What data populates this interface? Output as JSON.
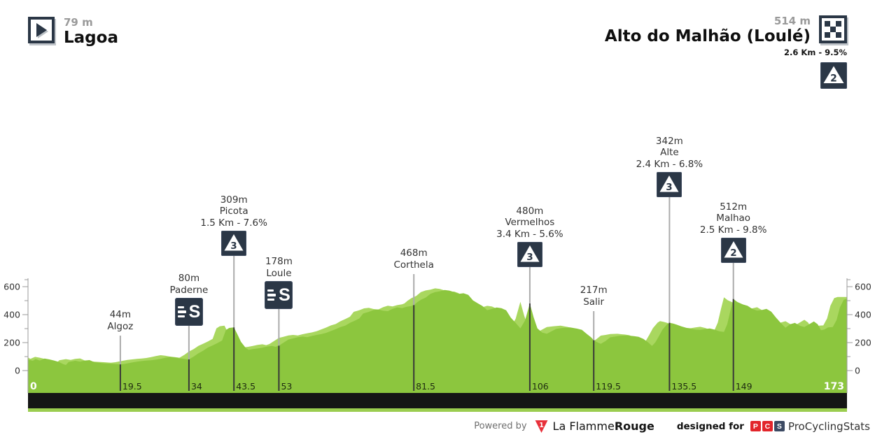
{
  "header": {
    "start": {
      "elevation_label": "79 m",
      "name": "Lagoa"
    },
    "finish": {
      "elevation_label": "514 m",
      "name": "Alto do Malhão (Loulé)",
      "climb_stats": "2.6 Km - 9.5%",
      "category": "2"
    }
  },
  "chart_data": {
    "type": "area",
    "x_unit": "km",
    "y_unit": "m",
    "x_range": [
      0,
      173
    ],
    "y_axis": {
      "major": [
        0,
        200,
        400,
        600
      ],
      "minor": [
        100,
        300,
        500,
        650
      ]
    },
    "x_ticks": [
      0,
      19.5,
      34,
      43.5,
      53,
      81.5,
      106,
      119.5,
      135.5,
      149,
      173
    ],
    "profile": [
      [
        0,
        79
      ],
      [
        1,
        70
      ],
      [
        1.6,
        82
      ],
      [
        2.5,
        72
      ],
      [
        3.5,
        86
      ],
      [
        4.5,
        80
      ],
      [
        5.5,
        72
      ],
      [
        6.5,
        62
      ],
      [
        7.5,
        45
      ],
      [
        8,
        40
      ],
      [
        8.6,
        62
      ],
      [
        10,
        70
      ],
      [
        11,
        64
      ],
      [
        12,
        72
      ],
      [
        13,
        75
      ],
      [
        14,
        60
      ],
      [
        15,
        56
      ],
      [
        16,
        52
      ],
      [
        17,
        50
      ],
      [
        18,
        48
      ],
      [
        19.5,
        44
      ],
      [
        20.5,
        48
      ],
      [
        22,
        58
      ],
      [
        23,
        64
      ],
      [
        24,
        68
      ],
      [
        25,
        72
      ],
      [
        26,
        74
      ],
      [
        27,
        78
      ],
      [
        28,
        84
      ],
      [
        29,
        92
      ],
      [
        30,
        98
      ],
      [
        31,
        94
      ],
      [
        32,
        88
      ],
      [
        33,
        84
      ],
      [
        34,
        80
      ],
      [
        35,
        100
      ],
      [
        36,
        124
      ],
      [
        37,
        142
      ],
      [
        38,
        165
      ],
      [
        39,
        180
      ],
      [
        40,
        196
      ],
      [
        41,
        215
      ],
      [
        41.8,
        290
      ],
      [
        42.5,
        305
      ],
      [
        43.5,
        309
      ],
      [
        44.2,
        262
      ],
      [
        45,
        205
      ],
      [
        46,
        162
      ],
      [
        46.6,
        148
      ],
      [
        47.5,
        154
      ],
      [
        48.5,
        158
      ],
      [
        49.5,
        164
      ],
      [
        50.5,
        172
      ],
      [
        51.5,
        176
      ],
      [
        52.3,
        170
      ],
      [
        53,
        178
      ],
      [
        54,
        200
      ],
      [
        55,
        222
      ],
      [
        56,
        230
      ],
      [
        57,
        239
      ],
      [
        58,
        243
      ],
      [
        59,
        239
      ],
      [
        60,
        248
      ],
      [
        61,
        255
      ],
      [
        62,
        261
      ],
      [
        63,
        270
      ],
      [
        64,
        283
      ],
      [
        65,
        296
      ],
      [
        66,
        311
      ],
      [
        67,
        321
      ],
      [
        68,
        341
      ],
      [
        69,
        356
      ],
      [
        70,
        373
      ],
      [
        70.8,
        408
      ],
      [
        72,
        420
      ],
      [
        73,
        433
      ],
      [
        74,
        437
      ],
      [
        75,
        428
      ],
      [
        76,
        425
      ],
      [
        77,
        441
      ],
      [
        78,
        452
      ],
      [
        79,
        447
      ],
      [
        80,
        456
      ],
      [
        81,
        462
      ],
      [
        81.5,
        468
      ],
      [
        82.2,
        488
      ],
      [
        83,
        506
      ],
      [
        84,
        522
      ],
      [
        85,
        549
      ],
      [
        86,
        561
      ],
      [
        87,
        567
      ],
      [
        88,
        576
      ],
      [
        89,
        572
      ],
      [
        90,
        561
      ],
      [
        91,
        549
      ],
      [
        92,
        553
      ],
      [
        93,
        541
      ],
      [
        94,
        502
      ],
      [
        95,
        481
      ],
      [
        96,
        462
      ],
      [
        97,
        432
      ],
      [
        98,
        441
      ],
      [
        99,
        451
      ],
      [
        100,
        446
      ],
      [
        101,
        431
      ],
      [
        102,
        378
      ],
      [
        103,
        341
      ],
      [
        104,
        302
      ],
      [
        105,
        358
      ],
      [
        106,
        480
      ],
      [
        106.8,
        382
      ],
      [
        107.6,
        302
      ],
      [
        108.6,
        272
      ],
      [
        109.6,
        263
      ],
      [
        110.6,
        281
      ],
      [
        111.6,
        299
      ],
      [
        113,
        305
      ],
      [
        114.5,
        309
      ],
      [
        116,
        300
      ],
      [
        117,
        291
      ],
      [
        118,
        263
      ],
      [
        119,
        236
      ],
      [
        119.5,
        217
      ],
      [
        120.3,
        201
      ],
      [
        121,
        191
      ],
      [
        122,
        211
      ],
      [
        123,
        238
      ],
      [
        124,
        243
      ],
      [
        125,
        249
      ],
      [
        126.5,
        251
      ],
      [
        128,
        246
      ],
      [
        129,
        241
      ],
      [
        130,
        226
      ],
      [
        131,
        201
      ],
      [
        131.8,
        176
      ],
      [
        132.5,
        201
      ],
      [
        133.2,
        241
      ],
      [
        134,
        291
      ],
      [
        135,
        331
      ],
      [
        135.5,
        342
      ],
      [
        136.3,
        336
      ],
      [
        137,
        329
      ],
      [
        138,
        316
      ],
      [
        139,
        306
      ],
      [
        140,
        299
      ],
      [
        141,
        293
      ],
      [
        142,
        291
      ],
      [
        143,
        297
      ],
      [
        144,
        301
      ],
      [
        145,
        293
      ],
      [
        146,
        281
      ],
      [
        147,
        276
      ],
      [
        147.7,
        331
      ],
      [
        148.4,
        432
      ],
      [
        149,
        512
      ],
      [
        149.8,
        491
      ],
      [
        151,
        473
      ],
      [
        152,
        463
      ],
      [
        153,
        441
      ],
      [
        154,
        429
      ],
      [
        155,
        433
      ],
      [
        156,
        441
      ],
      [
        157,
        421
      ],
      [
        158,
        379
      ],
      [
        159,
        341
      ],
      [
        160,
        306
      ],
      [
        161,
        331
      ],
      [
        162,
        341
      ],
      [
        163,
        321
      ],
      [
        164,
        311
      ],
      [
        165,
        331
      ],
      [
        166,
        351
      ],
      [
        166.8,
        331
      ],
      [
        167.5,
        289
      ],
      [
        168.2,
        293
      ],
      [
        169,
        309
      ],
      [
        170,
        311
      ],
      [
        170.8,
        361
      ],
      [
        171.5,
        452
      ],
      [
        172.3,
        506
      ],
      [
        173,
        514
      ]
    ],
    "markers": [
      {
        "km": 19.5,
        "elevation_m": 44,
        "elevation_label": "44m",
        "name": "Algoz",
        "icon": null,
        "stack_bottom_y": 480
      },
      {
        "km": 34,
        "elevation_m": 80,
        "elevation_label": "80m",
        "name": "Paderne",
        "icon": "sprint",
        "stack_bottom_y": 466
      },
      {
        "km": 43.5,
        "elevation_m": 309,
        "elevation_label": "309m",
        "name": "Picota",
        "climb_label": "1.5 Km - 7.6%",
        "icon": "cat",
        "category": "3",
        "stack_bottom_y": 366
      },
      {
        "km": 53,
        "elevation_m": 178,
        "elevation_label": "178m",
        "name": "Loule",
        "icon": "sprint",
        "stack_bottom_y": 442
      },
      {
        "km": 81.5,
        "elevation_m": 468,
        "elevation_label": "468m",
        "name": "Corthela",
        "icon": null,
        "stack_bottom_y": 392
      },
      {
        "km": 106,
        "elevation_m": 480,
        "elevation_label": "480m",
        "name": "Vermelhos",
        "climb_label": "3.4 Km - 5.6%",
        "icon": "cat",
        "category": "3",
        "stack_bottom_y": 382
      },
      {
        "km": 119.5,
        "elevation_m": 217,
        "elevation_label": "217m",
        "name": "Salir",
        "icon": null,
        "stack_bottom_y": 445
      },
      {
        "km": 135.5,
        "elevation_m": 342,
        "elevation_label": "342m",
        "name": "Alte",
        "climb_label": "2.4 Km - 6.8%",
        "icon": "cat",
        "category": "3",
        "stack_bottom_y": 282
      },
      {
        "km": 149,
        "elevation_m": 512,
        "elevation_label": "512m",
        "name": "Malhao",
        "climb_label": "2.5 Km - 9.8%",
        "icon": "cat",
        "category": "2",
        "stack_bottom_y": 376
      }
    ]
  },
  "icons": {
    "sprint_letter": "S"
  },
  "footer": {
    "powered_by": "Powered by",
    "lfr": {
      "name_regular": "La Flamme",
      "name_bold": "Rouge",
      "badge": "1"
    },
    "designed_for": "designed for",
    "pcs": {
      "letters": [
        "P",
        "C",
        "S"
      ],
      "letter_colors": [
        "#E2252B",
        "#E2252B",
        "#3C4A63"
      ],
      "name": "ProCyclingStats"
    }
  },
  "colors": {
    "main_green": "#8CC63E",
    "light_green": "#A9D75F",
    "bar": "#151515",
    "strip": "#9BCD4F",
    "icon_bg": "#2B3746",
    "line_gray": "#ABABAB",
    "line_dark": "#383838",
    "axis": "#9A9A9A"
  }
}
